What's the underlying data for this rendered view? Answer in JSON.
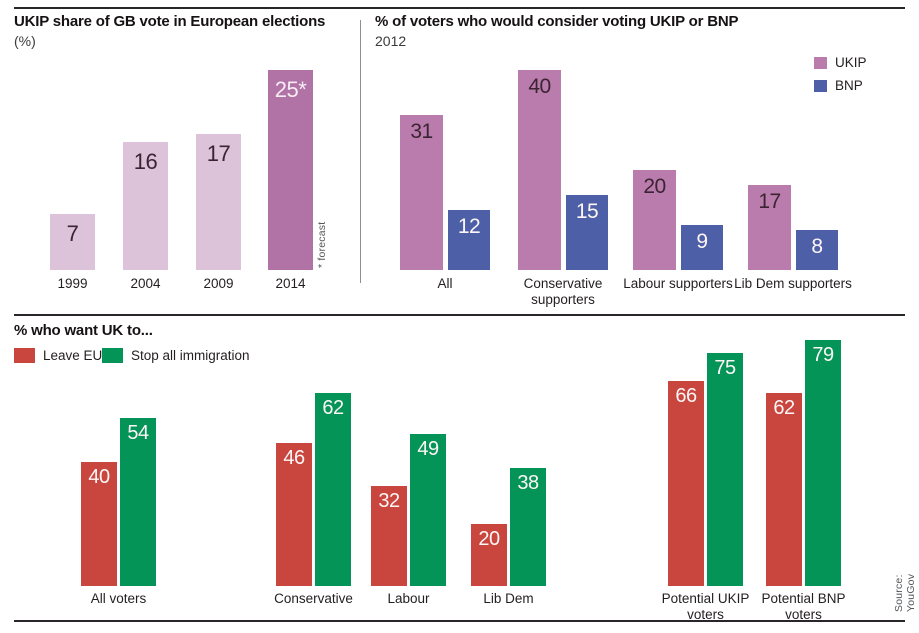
{
  "source": "Source: YouGov",
  "colors": {
    "light_pink": "#dcc3d9",
    "mauve": "#b173a5",
    "ukip_pink": "#ba7cac",
    "bnp_blue": "#4d5fa7",
    "leave_red": "#c9463f",
    "immigration_green": "#059457",
    "dark_value_text": "#3a2433",
    "rule": "#2a252a"
  },
  "panels": {
    "ukip_share": {
      "title": "UKIP share of GB vote in European elections",
      "subtitle": "(%)",
      "footnote": "* forecast"
    },
    "consider": {
      "title": "% of voters who would consider voting UKIP or BNP",
      "subtitle": "2012",
      "legend": [
        "UKIP",
        "BNP"
      ]
    },
    "want": {
      "title": "% who want UK to...",
      "legend": [
        "Leave EU",
        "Stop all immigration"
      ]
    }
  },
  "chart_data": [
    {
      "type": "bar",
      "title": "UKIP share of GB vote in European elections",
      "subtitle": "(%)",
      "categories": [
        "1999",
        "2004",
        "2009",
        "2014"
      ],
      "values": [
        7,
        16,
        17,
        25
      ],
      "value_labels": [
        "7",
        "16",
        "17",
        "25*"
      ],
      "footnote": "* forecast",
      "ylim": [
        0,
        27
      ],
      "grid": false,
      "note": "2014 bar highlighted darker; value is a forecast"
    },
    {
      "type": "bar",
      "title": "% of voters who would consider voting UKIP or BNP",
      "subtitle": "2012",
      "categories": [
        "All",
        "Conservative supporters",
        "Labour supporters",
        "Lib Dem supporters"
      ],
      "series": [
        {
          "name": "UKIP",
          "values": [
            31,
            40,
            20,
            17
          ]
        },
        {
          "name": "BNP",
          "values": [
            12,
            15,
            9,
            8
          ]
        }
      ],
      "ylim": [
        0,
        42
      ],
      "grid": false,
      "legend_position": "top-right"
    },
    {
      "type": "bar",
      "title": "% who want UK to...",
      "categories": [
        "All voters",
        "Conservative",
        "Labour",
        "Lib Dem",
        "Potential UKIP voters",
        "Potential BNP voters"
      ],
      "series": [
        {
          "name": "Leave EU",
          "values": [
            40,
            46,
            32,
            20,
            66,
            62
          ]
        },
        {
          "name": "Stop all immigration",
          "values": [
            54,
            62,
            49,
            38,
            75,
            79
          ]
        }
      ],
      "ylim": [
        0,
        82
      ],
      "grid": false,
      "legend_position": "top-left"
    }
  ]
}
